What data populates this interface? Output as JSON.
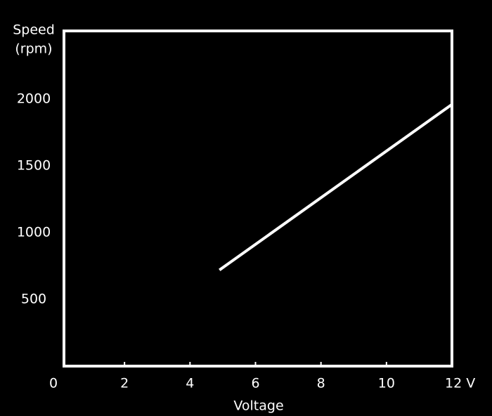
{
  "chart_data": {
    "type": "line",
    "y_label": [
      "Speed",
      "(rpm)"
    ],
    "x_label": "Voltage",
    "x": [
      4.9,
      12
    ],
    "series": [
      {
        "color": "#ffffff",
        "values": [
          720,
          1960
        ]
      }
    ],
    "xlim": [
      0,
      12
    ],
    "xticks": [
      0,
      2,
      4,
      6,
      8,
      10,
      {
        "value": 12,
        "label": "12 V"
      }
    ],
    "ylim": [
      0,
      2500
    ],
    "yticks": [
      500,
      1000,
      1500,
      2000
    ],
    "grid": true
  }
}
